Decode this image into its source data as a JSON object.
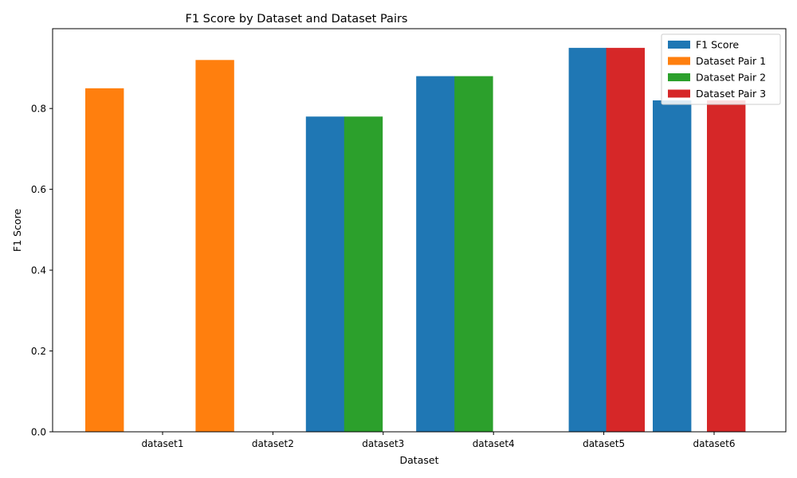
{
  "chart_data": {
    "type": "bar",
    "title": "F1 Score by Dataset and Dataset Pairs",
    "xlabel": "Dataset",
    "ylabel": "F1 Score",
    "categories": [
      "dataset1",
      "dataset2",
      "dataset3",
      "dataset4",
      "dataset5",
      "dataset6"
    ],
    "ylim": [
      0,
      0.9975
    ],
    "yticks": [
      0.0,
      0.2,
      0.4,
      0.6,
      0.8
    ],
    "ytick_labels": [
      "0.0",
      "0.2",
      "0.4",
      "0.6",
      "0.8"
    ],
    "legend_position": "top-right",
    "grid": false,
    "series": [
      {
        "name": "F1 Score",
        "color": "#1f77b4",
        "values": [
          0.85,
          0.92,
          0.78,
          0.88,
          0.95,
          0.82
        ]
      },
      {
        "name": "Dataset Pair 1",
        "color": "#ff7f0e",
        "values": [
          0.85,
          0.92,
          null,
          null,
          null,
          null
        ]
      },
      {
        "name": "Dataset Pair 2",
        "color": "#2ca02c",
        "values": [
          null,
          null,
          0.78,
          0.88,
          null,
          null
        ]
      },
      {
        "name": "Dataset Pair 3",
        "color": "#d62728",
        "values": [
          null,
          null,
          null,
          null,
          0.95,
          0.82
        ]
      }
    ]
  }
}
